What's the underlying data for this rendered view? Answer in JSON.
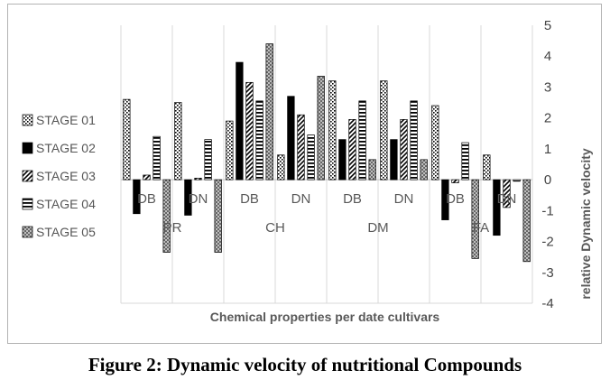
{
  "caption": "Figure 2: Dynamic velocity of nutritional Compounds",
  "chart_data": {
    "type": "bar",
    "xlabel": "Chemical properties per date cultivars",
    "ylabel": "relative  Dynamic velocity",
    "ylim": [
      -4,
      5
    ],
    "yticks": [
      5,
      4,
      3,
      2,
      1,
      0,
      -1,
      -2,
      -3,
      -4
    ],
    "y_axis_side": "right",
    "grid": true,
    "legend_position": "left",
    "categories": [
      "DB",
      "DN",
      "DB",
      "DN",
      "DB",
      "DN",
      "DB",
      "DN"
    ],
    "groups": [
      {
        "label": "PR",
        "categories": [
          0,
          1
        ]
      },
      {
        "label": "CH",
        "categories": [
          2,
          3
        ]
      },
      {
        "label": "DM",
        "categories": [
          4,
          5
        ]
      },
      {
        "label": "FA",
        "categories": [
          6,
          7
        ]
      }
    ],
    "series": [
      {
        "name": "STAGE 01",
        "pattern": "dots",
        "values": [
          2.6,
          2.5,
          1.9,
          0.8,
          3.2,
          3.2,
          2.4,
          0.8
        ]
      },
      {
        "name": "STAGE 02",
        "pattern": "solid",
        "values": [
          -1.1,
          -1.15,
          3.8,
          2.7,
          1.3,
          1.3,
          -1.3,
          -1.8
        ]
      },
      {
        "name": "STAGE 03",
        "pattern": "diagonal",
        "values": [
          0.15,
          0.05,
          3.15,
          2.1,
          1.95,
          1.95,
          -0.1,
          -0.9
        ]
      },
      {
        "name": "STAGE 04",
        "pattern": "horizontal",
        "values": [
          1.4,
          1.3,
          2.55,
          1.45,
          2.55,
          2.55,
          1.2,
          -0.05
        ]
      },
      {
        "name": "STAGE 05",
        "pattern": "crosshatch",
        "values": [
          -2.35,
          -2.35,
          4.4,
          3.35,
          0.65,
          0.65,
          -2.55,
          -2.65
        ]
      }
    ]
  }
}
